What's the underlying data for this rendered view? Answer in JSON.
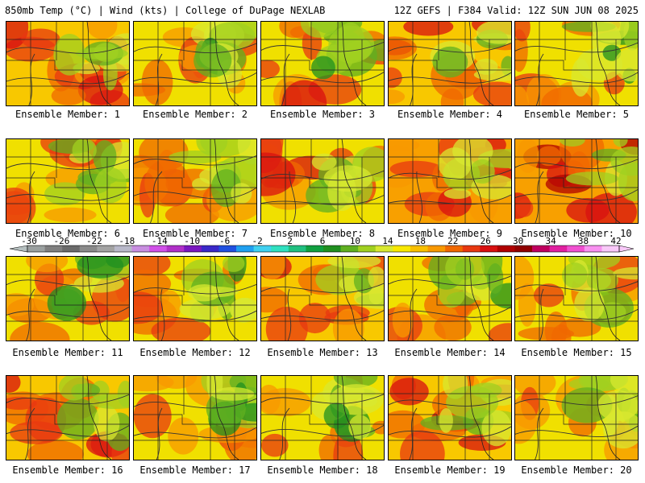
{
  "header": {
    "left": "850mb Temp (°C) | Wind (kts) | College of DuPage NEXLAB",
    "right": "12Z GEFS | F384 Valid: 12Z SUN JUN 08 2025"
  },
  "colorbar": {
    "tick_labels": [
      "-30",
      "-26",
      "-22",
      "-18",
      "-14",
      "-10",
      "-6",
      "-2",
      "2",
      "6",
      "10",
      "14",
      "18",
      "22",
      "26",
      "30",
      "34",
      "38",
      "42"
    ],
    "colors": [
      "#9aa0a0",
      "#7f7f7f",
      "#6b6b6b",
      "#8a8a8a",
      "#a3a3a3",
      "#b9b9c9",
      "#c88ee0",
      "#d050e8",
      "#b030c8",
      "#7a18c0",
      "#3a28c8",
      "#2050e0",
      "#20a0f0",
      "#40d0f0",
      "#30e0c0",
      "#20c080",
      "#10a040",
      "#209020",
      "#60b020",
      "#a0d020",
      "#d8e830",
      "#f8e800",
      "#f8c000",
      "#f89800",
      "#f06800",
      "#e83810",
      "#d81010",
      "#b00000",
      "#900000",
      "#c00060",
      "#e020a0",
      "#f050d0",
      "#f890f0",
      "#f8c8f8"
    ]
  },
  "members": [
    {
      "label": "Ensemble Member: 1",
      "warm": 0.55
    },
    {
      "label": "Ensemble Member: 2",
      "warm": 0.4
    },
    {
      "label": "Ensemble Member: 3",
      "warm": 0.45
    },
    {
      "label": "Ensemble Member: 4",
      "warm": 0.6
    },
    {
      "label": "Ensemble Member: 5",
      "warm": 0.3
    },
    {
      "label": "Ensemble Member: 6",
      "warm": 0.4
    },
    {
      "label": "Ensemble Member: 7",
      "warm": 0.45
    },
    {
      "label": "Ensemble Member: 8",
      "warm": 0.45
    },
    {
      "label": "Ensemble Member: 9",
      "warm": 0.75
    },
    {
      "label": "Ensemble Member: 10",
      "warm": 0.7
    },
    {
      "label": "Ensemble Member: 11",
      "warm": 0.4
    },
    {
      "label": "Ensemble Member: 12",
      "warm": 0.35
    },
    {
      "label": "Ensemble Member: 13",
      "warm": 0.55
    },
    {
      "label": "Ensemble Member: 14",
      "warm": 0.4
    },
    {
      "label": "Ensemble Member: 15",
      "warm": 0.45
    },
    {
      "label": "Ensemble Member: 16",
      "warm": 0.5
    },
    {
      "label": "Ensemble Member: 17",
      "warm": 0.35
    },
    {
      "label": "Ensemble Member: 18",
      "warm": 0.3
    },
    {
      "label": "Ensemble Member: 19",
      "warm": 0.55
    },
    {
      "label": "Ensemble Member: 20",
      "warm": 0.35
    }
  ]
}
